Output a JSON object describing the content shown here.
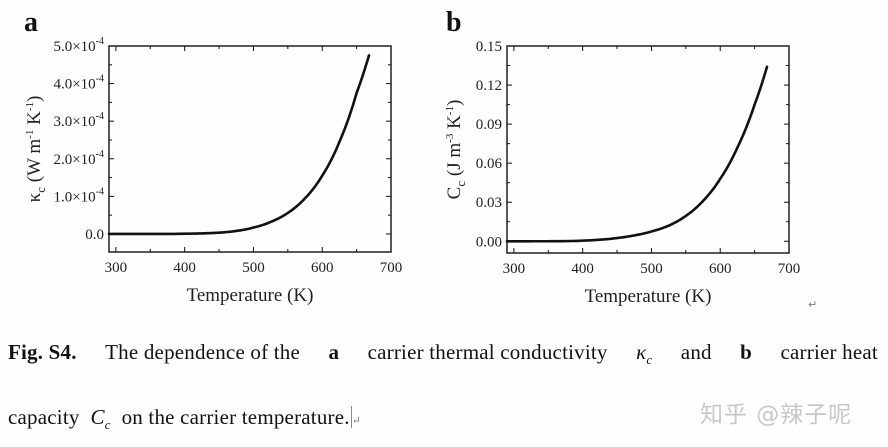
{
  "panels": {
    "a": {
      "label": "a"
    },
    "b": {
      "label": "b"
    }
  },
  "chart_data": [
    {
      "type": "line",
      "panel": "a",
      "title": "",
      "xlabel": "Temperature (K)",
      "ylabel": "κc (W m-1 K-1)",
      "xlim": [
        290,
        700
      ],
      "ylim": [
        -4.8e-05,
        0.0005
      ],
      "xticks": [
        300,
        400,
        500,
        600,
        700
      ],
      "xtick_labels": [
        "300",
        "400",
        "500",
        "600",
        "700"
      ],
      "yticks": [
        0,
        0.0001,
        0.0002,
        0.0003,
        0.0004,
        0.0005
      ],
      "ytick_labels": [
        "0.0",
        "1.0×10-4",
        "2.0×10-4",
        "3.0×10-4",
        "4.0×10-4",
        "5.0×10-4"
      ],
      "grid": false,
      "legend": null,
      "series": [
        {
          "name": "κc",
          "color": "#111111",
          "x": [
            290,
            350,
            400,
            425,
            450,
            475,
            500,
            525,
            550,
            575,
            600,
            625,
            650,
            668
          ],
          "y": [
            0.0,
            1e-08,
            6e-07,
            1.5e-06,
            3.5e-06,
            8e-06,
            1.7e-05,
            3.2e-05,
            5.6e-05,
            9.5e-05,
            0.000155,
            0.000245,
            0.000375,
            0.000475
          ]
        }
      ]
    },
    {
      "type": "line",
      "panel": "b",
      "title": "",
      "xlabel": "Temperature (K)",
      "ylabel": "Cc (J m-3 K-1)",
      "xlim": [
        290,
        700
      ],
      "ylim": [
        -0.009,
        0.15
      ],
      "xticks": [
        300,
        400,
        500,
        600,
        700
      ],
      "xtick_labels": [
        "300",
        "400",
        "500",
        "600",
        "700"
      ],
      "yticks": [
        0.0,
        0.03,
        0.06,
        0.09,
        0.12,
        0.15
      ],
      "ytick_labels": [
        "0.00",
        "0.03",
        "0.06",
        "0.09",
        "0.12",
        "0.15"
      ],
      "grid": false,
      "legend": null,
      "series": [
        {
          "name": "Cc",
          "color": "#111111",
          "x": [
            290,
            350,
            400,
            425,
            450,
            475,
            500,
            525,
            550,
            575,
            600,
            625,
            650,
            668
          ],
          "y": [
            0.0,
            3e-05,
            0.0005,
            0.0012,
            0.0025,
            0.0045,
            0.0075,
            0.012,
            0.0195,
            0.031,
            0.048,
            0.072,
            0.105,
            0.134
          ]
        }
      ]
    }
  ],
  "caption": {
    "fig_label": "Fig. S4.",
    "line1_parts": [
      "The",
      "dependence",
      "of",
      "the",
      "a",
      "carrier",
      "thermal",
      "conductivity",
      "κc",
      "and",
      "b",
      "carrier",
      "heat"
    ],
    "text_1": "The dependence of the",
    "bold_a": "a",
    "text_2": "carrier thermal conductivity",
    "symbol_kappa": "κ",
    "symbol_kappa_sub": "c",
    "text_3": "and",
    "bold_b": "b",
    "text_4": "carrier heat",
    "text_5": "capacity",
    "symbol_C": "C",
    "symbol_C_sub": "c",
    "text_6": "on the carrier temperature."
  },
  "watermark": "知乎 @辣子呢",
  "return_mark": "↵"
}
